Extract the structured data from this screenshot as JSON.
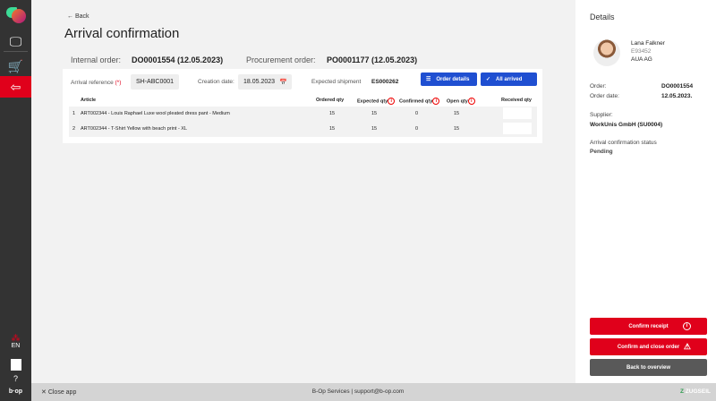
{
  "sidebar": {
    "lang": "EN",
    "brand": "b·op"
  },
  "header": {
    "back": "Back",
    "title": "Arrival confirmation"
  },
  "orders": {
    "internal_label": "Internal order:",
    "internal_value": "DO0001554 (12.05.2023)",
    "procurement_label": "Procurement order:",
    "procurement_value": "PO0001177 (12.05.2023)"
  },
  "form": {
    "arrival_ref_label": "Arrival reference",
    "required": "(*)",
    "arrival_ref_value": "SH-ABC0001",
    "creation_label": "Creation date:",
    "creation_value": "18.05.2023",
    "shipment_label": "Expected shipment",
    "shipment_value": "ES000262",
    "order_details": "Order details",
    "all_arrived": "All arrived"
  },
  "table": {
    "headers": {
      "article": "Article",
      "ordered": "Ordered qty",
      "expected": "Expected qty",
      "confirmed": "Confirmed qty",
      "open": "Open qty",
      "received": "Received qty"
    },
    "rows": [
      {
        "n": "1",
        "article": "ART002344 - Louis Raphael Luxe wool pleated dress pant - Medium",
        "ordered": "15",
        "expected": "15",
        "confirmed": "0",
        "open": "15",
        "received": ""
      },
      {
        "n": "2",
        "article": "ART002344 - T-Shirt Yellow with beach print - XL",
        "ordered": "15",
        "expected": "15",
        "confirmed": "0",
        "open": "15",
        "received": ""
      }
    ]
  },
  "details": {
    "title": "Details",
    "name": "Lana Falkner",
    "id": "E93452",
    "company": "AUA AG",
    "order_label": "Order:",
    "order_value": "DO0001554",
    "date_label": "Order date:",
    "date_value": "12.05.2023.",
    "supplier_label": "Supplier:",
    "supplier_value": "WorkUnis GmbH (SU0004)",
    "status_label": "Arrival confirmation status",
    "status_value": "Pending"
  },
  "actions": {
    "confirm": "Confirm receipt",
    "confirm_close": "Confirm and close order",
    "back": "Back to overview"
  },
  "footer": {
    "close": "Close app",
    "center": "B-Op Services | support@b-op.com",
    "logo": "ZUGSEIL"
  },
  "colors": {
    "accent_red": "#e0001b",
    "blue": "#1f4fd1",
    "sidebar": "#333333"
  }
}
